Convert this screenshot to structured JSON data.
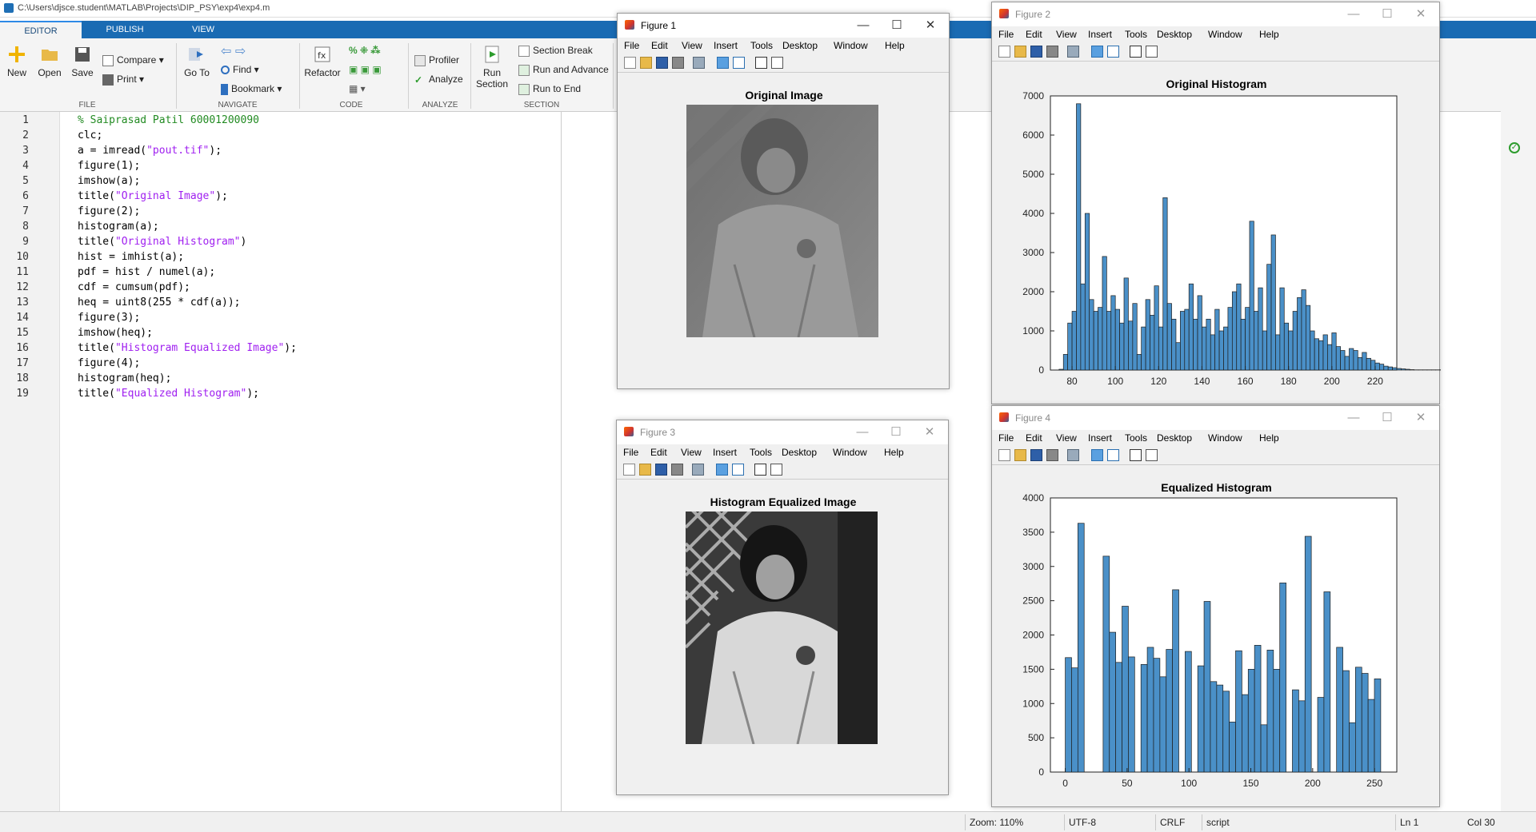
{
  "window": {
    "path": "C:\\Users\\djsce.student\\MATLAB\\Projects\\DIP_PSY\\exp4\\exp4.m"
  },
  "tabs": [
    "EDITOR",
    "PUBLISH",
    "VIEW"
  ],
  "ribbon": {
    "new": "New",
    "open": "Open",
    "save": "Save",
    "compare": "Compare",
    "print": "Print",
    "goto": "Go To",
    "find": "Find",
    "bookmark": "Bookmark",
    "refactor": "Refactor",
    "profiler": "Profiler",
    "analyze": "Analyze",
    "run_section": "Run Section",
    "section_break": "Section Break",
    "run_advance": "Run and Advance",
    "run_end": "Run to End",
    "groups": [
      "FILE",
      "NAVIGATE",
      "CODE",
      "ANALYZE",
      "SECTION"
    ]
  },
  "code": [
    "% Saiprasad Patil 60001200090",
    "clc;",
    "a = imread(\"pout.tif\");",
    "figure(1);",
    "imshow(a);",
    "title(\"Original Image\");",
    "figure(2);",
    "histogram(a);",
    "title(\"Original Histogram\")",
    "hist = imhist(a);",
    "pdf = hist / numel(a);",
    "cdf = cumsum(pdf);",
    "heq = uint8(255 * cdf(a));",
    "figure(3);",
    "imshow(heq);",
    "title(\"Histogram Equalized Image\");",
    "figure(4);",
    "histogram(heq);",
    "title(\"Equalized Histogram\");"
  ],
  "menu": [
    "File",
    "Edit",
    "View",
    "Insert",
    "Tools",
    "Desktop",
    "Window",
    "Help"
  ],
  "figures": {
    "f1": {
      "title": "Figure 1",
      "plot_title": "Original Image"
    },
    "f2": {
      "title": "Figure 2"
    },
    "f3": {
      "title": "Figure 3",
      "plot_title": "Histogram Equalized Image"
    },
    "f4": {
      "title": "Figure 4"
    }
  },
  "status": {
    "zoom": "Zoom: 110%",
    "encoding": "UTF-8",
    "eol": "CRLF",
    "type": "script",
    "ln": "Ln  1",
    "col": "Col  30"
  },
  "colors": {
    "bar": "#4a90c8",
    "tab_bar": "#1a6bb3",
    "comment": "#228b22",
    "string": "#a020f0"
  },
  "chart_data": [
    {
      "type": "bar",
      "title": "Original Histogram",
      "xlim": [
        70,
        230
      ],
      "ylim": [
        0,
        7000
      ],
      "xticks": [
        80,
        100,
        120,
        140,
        160,
        180,
        200,
        220
      ],
      "yticks": [
        0,
        1000,
        2000,
        3000,
        4000,
        5000,
        6000,
        7000
      ],
      "bin_start": 74,
      "bin_width": 2,
      "values": [
        20,
        400,
        1200,
        1500,
        6800,
        2200,
        4000,
        1800,
        1500,
        1600,
        2900,
        1500,
        1900,
        1550,
        1200,
        2350,
        1250,
        1700,
        400,
        1100,
        1800,
        1400,
        2150,
        1100,
        4400,
        1700,
        1300,
        700,
        1500,
        1550,
        2200,
        1300,
        1900,
        1100,
        1300,
        900,
        1550,
        1000,
        1100,
        1600,
        2000,
        2200,
        1300,
        1600,
        3800,
        1500,
        2100,
        1000,
        2700,
        3450,
        900,
        2100,
        1200,
        1000,
        1500,
        1850,
        2050,
        1650,
        1000,
        800,
        750,
        900,
        650,
        950,
        600,
        500,
        350,
        550,
        500,
        320,
        450,
        300,
        250,
        180,
        150,
        100,
        80,
        60,
        40,
        30,
        20,
        10,
        5,
        5,
        5,
        5,
        5,
        5,
        5,
        5,
        5,
        5,
        5,
        5,
        5,
        5,
        5,
        5,
        5,
        5,
        5,
        5,
        5,
        5,
        5,
        5,
        5,
        5,
        5,
        5,
        5,
        5,
        5,
        5,
        5,
        5,
        5,
        5,
        5
      ]
    },
    {
      "type": "bar",
      "title": "Equalized Histogram",
      "xlim": [
        -12,
        268
      ],
      "ylim": [
        0,
        4000
      ],
      "xticks": [
        0,
        50,
        100,
        150,
        200,
        250
      ],
      "yticks": [
        0,
        500,
        1000,
        1500,
        2000,
        2500,
        3000,
        3500,
        4000
      ],
      "bin_start": 0,
      "bin_width": 5.1,
      "values": [
        1670,
        1520,
        3630,
        0,
        0,
        0,
        3150,
        2040,
        1600,
        2420,
        1680,
        0,
        1570,
        1820,
        1660,
        1390,
        1790,
        2660,
        0,
        1760,
        0,
        1550,
        2490,
        1320,
        1270,
        1180,
        730,
        1770,
        1130,
        1500,
        1850,
        690,
        1780,
        1500,
        2760,
        0,
        1200,
        1040,
        3440,
        0,
        1090,
        2630,
        0,
        1820,
        1480,
        720,
        1530,
        1440,
        1060,
        1360
      ]
    }
  ]
}
